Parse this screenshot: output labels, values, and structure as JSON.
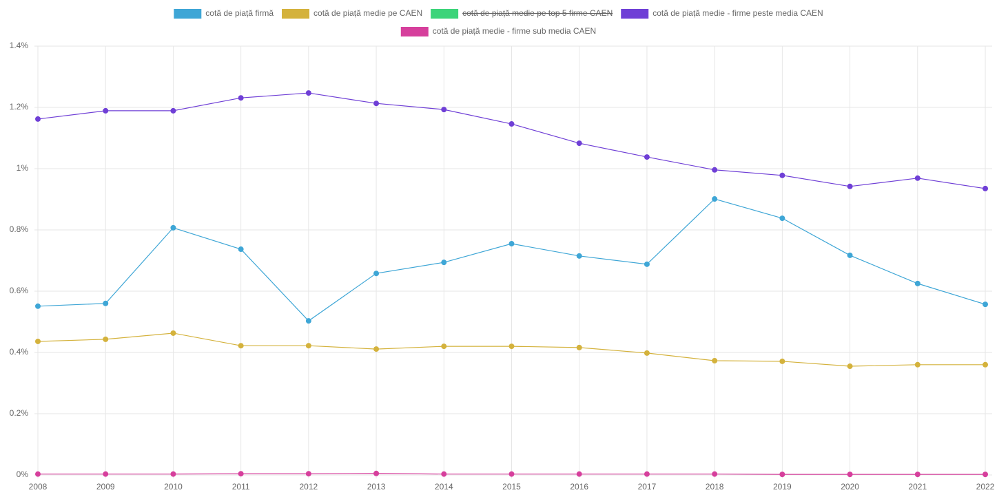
{
  "chart_data": {
    "type": "line",
    "categories": [
      "2008",
      "2009",
      "2010",
      "2011",
      "2012",
      "2013",
      "2014",
      "2015",
      "2016",
      "2017",
      "2018",
      "2019",
      "2020",
      "2021",
      "2022"
    ],
    "series": [
      {
        "name": "cotă de piață firmă",
        "color": "#3ea6d6",
        "values": [
          0.551,
          0.56,
          0.807,
          0.737,
          0.503,
          0.658,
          0.694,
          0.755,
          0.715,
          0.688,
          0.901,
          0.838,
          0.717,
          0.625,
          0.557
        ]
      },
      {
        "name": "cotă de piață medie pe CAEN",
        "color": "#d4b23c",
        "values": [
          0.436,
          0.443,
          0.463,
          0.422,
          0.422,
          0.411,
          0.42,
          0.42,
          0.416,
          0.398,
          0.373,
          0.371,
          0.355,
          0.36,
          0.36
        ]
      },
      {
        "name": "cotă de piață medie pe top 5 firme CAEN",
        "color": "#3cd47a",
        "hidden": true,
        "values": [
          null,
          null,
          null,
          null,
          null,
          null,
          null,
          null,
          null,
          null,
          null,
          null,
          null,
          null,
          null
        ]
      },
      {
        "name": "cotă de piață medie - firme peste media CAEN",
        "color": "#6f3fd6",
        "values": [
          1.162,
          1.189,
          1.189,
          1.231,
          1.247,
          1.213,
          1.193,
          1.146,
          1.083,
          1.038,
          0.996,
          0.978,
          0.942,
          0.969,
          0.935
        ]
      },
      {
        "name": "cotă de piață medie - firme sub media CAEN",
        "color": "#d63f9c",
        "values": [
          0.003,
          0.003,
          0.003,
          0.004,
          0.004,
          0.005,
          0.003,
          0.003,
          0.003,
          0.003,
          0.003,
          0.002,
          0.002,
          0.002,
          0.002
        ]
      }
    ],
    "ylim": [
      0,
      1.4
    ],
    "yticks": [
      {
        "value": 0,
        "label": "0%"
      },
      {
        "value": 0.2,
        "label": "0.2%"
      },
      {
        "value": 0.4,
        "label": "0.4%"
      },
      {
        "value": 0.6,
        "label": "0.6%"
      },
      {
        "value": 0.8,
        "label": "0.8%"
      },
      {
        "value": 1,
        "label": "1%"
      },
      {
        "value": 1.2,
        "label": "1.2%"
      },
      {
        "value": 1.4,
        "label": "1.4%"
      }
    ],
    "grid": true,
    "legend": "top"
  }
}
